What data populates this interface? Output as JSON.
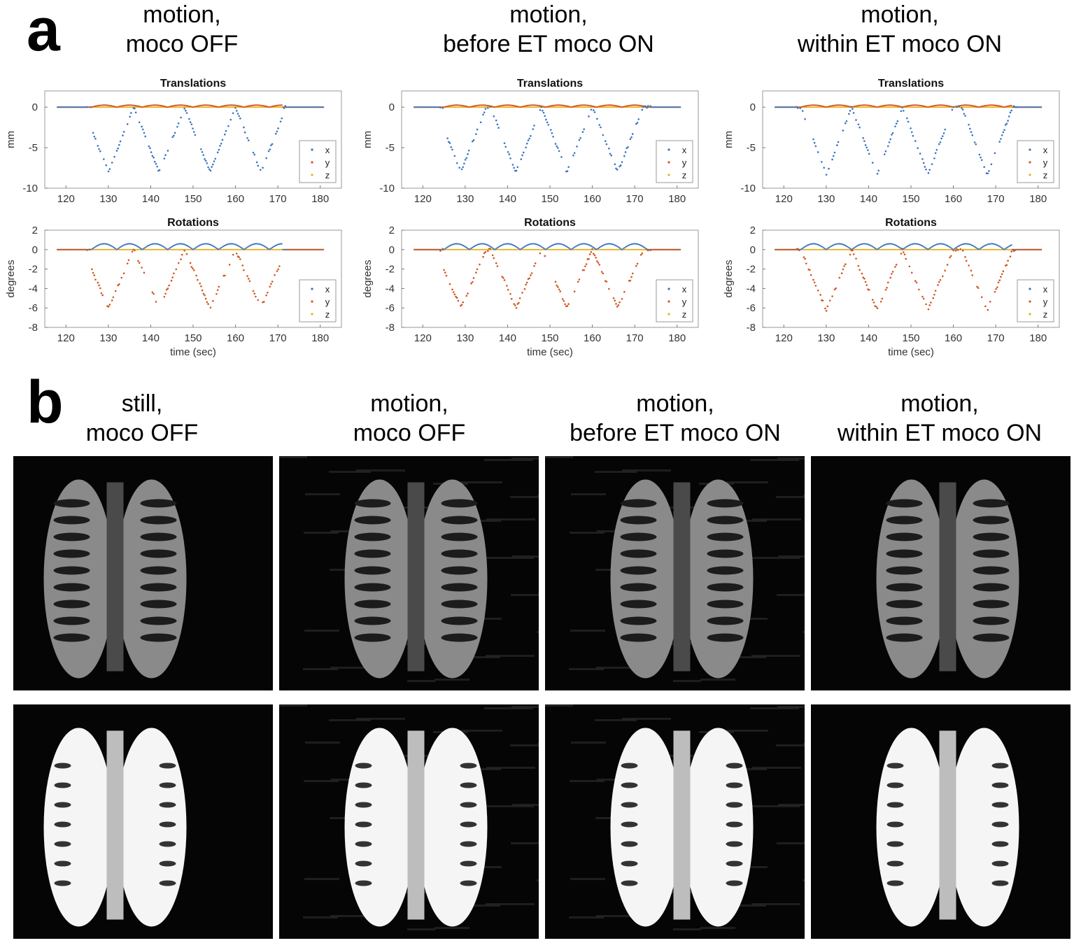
{
  "panel_a": {
    "letter": "a",
    "columns": [
      {
        "title_line1": "motion,",
        "title_line2": "moco OFF"
      },
      {
        "title_line1": "motion,",
        "title_line2": "before ET moco ON"
      },
      {
        "title_line1": "motion,",
        "title_line2": "within ET moco ON"
      }
    ]
  },
  "panel_b": {
    "letter": "b",
    "columns": [
      {
        "title_line1": "still,",
        "title_line2": "moco OFF"
      },
      {
        "title_line1": "motion,",
        "title_line2": "moco OFF"
      },
      {
        "title_line1": "motion,",
        "title_line2": "before ET moco ON"
      },
      {
        "title_line1": "motion,",
        "title_line2": "within ET moco ON"
      }
    ],
    "rows": 2
  },
  "colors": {
    "x": "#3a74c0",
    "y": "#d2561f",
    "z": "#e8b220"
  },
  "chart_data": [
    {
      "type": "scatter",
      "title": "Translations",
      "ylabel": "mm",
      "xlabel": "",
      "xlim": [
        115,
        185
      ],
      "ylim": [
        -10,
        2
      ],
      "xticks": [
        120,
        130,
        140,
        150,
        160,
        170,
        180
      ],
      "yticks": [
        0,
        -5,
        -10
      ],
      "legend": [
        "x",
        "y",
        "z"
      ],
      "legend_position": "bottom-right",
      "motion_peaks": [
        130,
        142,
        154,
        166
      ],
      "peak_min": -8,
      "start": 126,
      "end": 171
    },
    {
      "type": "scatter",
      "title": "Rotations",
      "ylabel": "degrees",
      "xlabel": "time (sec)",
      "xlim": [
        115,
        185
      ],
      "ylim": [
        -8,
        2
      ],
      "xticks": [
        120,
        130,
        140,
        150,
        160,
        170,
        180
      ],
      "yticks": [
        2,
        0,
        -2,
        -4,
        -6,
        -8
      ],
      "legend": [
        "x",
        "y",
        "z"
      ],
      "legend_position": "bottom-right",
      "motion_peaks": [
        130,
        142,
        154,
        166
      ],
      "peak_min": -6,
      "start": 126,
      "end": 171
    },
    {
      "type": "scatter",
      "title": "Translations",
      "ylabel": "mm",
      "xlabel": "",
      "xlim": [
        115,
        185
      ],
      "ylim": [
        -10,
        2
      ],
      "xticks": [
        120,
        130,
        140,
        150,
        160,
        170,
        180
      ],
      "yticks": [
        0,
        -5,
        -10
      ],
      "legend": [
        "x",
        "y",
        "z"
      ],
      "legend_position": "bottom-right",
      "motion_peaks": [
        129,
        142,
        154,
        166
      ],
      "peak_min": -8,
      "start": 125,
      "end": 173
    },
    {
      "type": "scatter",
      "title": "Rotations",
      "ylabel": "degrees",
      "xlabel": "time (sec)",
      "xlim": [
        115,
        185
      ],
      "ylim": [
        -8,
        2
      ],
      "xticks": [
        120,
        130,
        140,
        150,
        160,
        170,
        180
      ],
      "yticks": [
        2,
        0,
        -2,
        -4,
        -6,
        -8
      ],
      "legend": [
        "x",
        "y",
        "z"
      ],
      "legend_position": "bottom-right",
      "motion_peaks": [
        129,
        142,
        154,
        166
      ],
      "peak_min": -6,
      "start": 125,
      "end": 173
    },
    {
      "type": "scatter",
      "title": "Translations",
      "ylabel": "mm",
      "xlabel": "",
      "xlim": [
        115,
        185
      ],
      "ylim": [
        -10,
        2
      ],
      "xticks": [
        120,
        130,
        140,
        150,
        160,
        170,
        180
      ],
      "yticks": [
        0,
        -5,
        -10
      ],
      "legend": [
        "x",
        "y",
        "z"
      ],
      "legend_position": "bottom-right",
      "motion_peaks": [
        130,
        142,
        154,
        168
      ],
      "peak_min": -8.3,
      "start": 124,
      "end": 174
    },
    {
      "type": "scatter",
      "title": "Rotations",
      "ylabel": "degrees",
      "xlabel": "time (sec)",
      "xlim": [
        115,
        185
      ],
      "ylim": [
        -8,
        2
      ],
      "xticks": [
        120,
        130,
        140,
        150,
        160,
        170,
        180
      ],
      "yticks": [
        2,
        0,
        -2,
        -4,
        -6,
        -8
      ],
      "legend": [
        "x",
        "y",
        "z"
      ],
      "legend_position": "bottom-right",
      "motion_peaks": [
        130,
        142,
        154,
        168
      ],
      "peak_min": -6.2,
      "start": 124,
      "end": 174
    }
  ]
}
